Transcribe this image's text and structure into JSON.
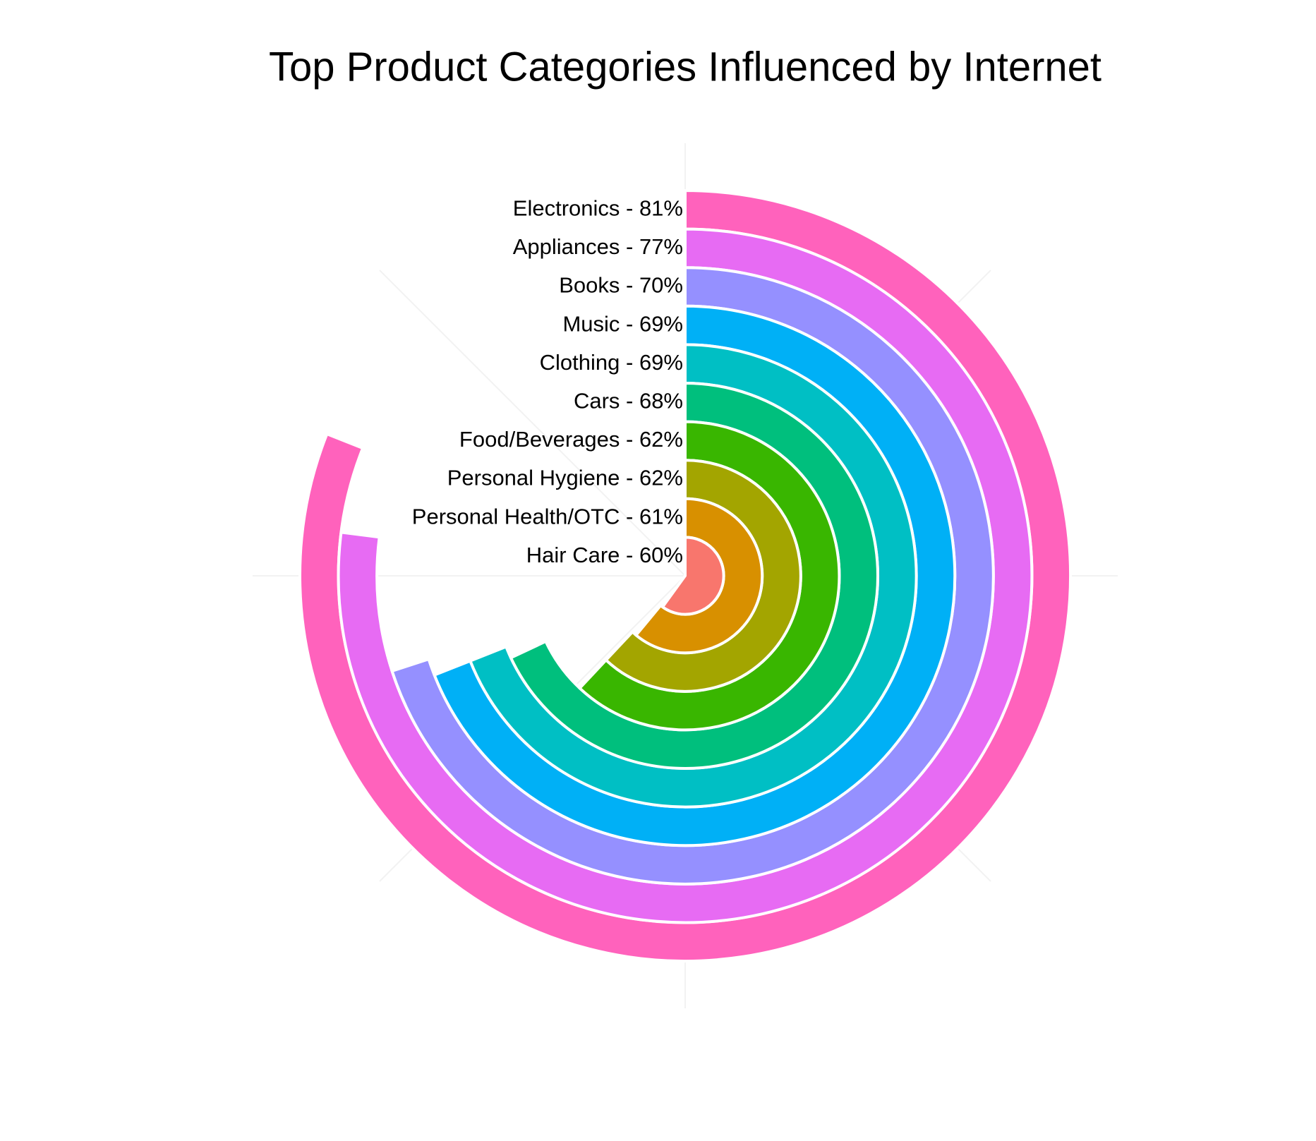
{
  "chart_data": {
    "type": "radial_bar",
    "title": "Top Product Categories Influenced by Internet",
    "value_labels": [
      "Electronics - 81%",
      "Appliances - 77%",
      "Books - 70%",
      "Music - 69%",
      "Clothing - 69%",
      "Cars - 68%",
      "Food/Beverages - 62%",
      "Personal Hygiene - 62%",
      "Personal Health/OTC - 61%",
      "Hair Care - 60%"
    ],
    "values": [
      81,
      77,
      70,
      69,
      69,
      68,
      62,
      62,
      61,
      60
    ],
    "colors": [
      "#FF62BC",
      "#E76BF3",
      "#9590FF",
      "#00B0F6",
      "#00BFC4",
      "#00BF7D",
      "#39B600",
      "#A3A500",
      "#D89000",
      "#F8766D"
    ],
    "ylim": [
      0,
      100
    ]
  }
}
